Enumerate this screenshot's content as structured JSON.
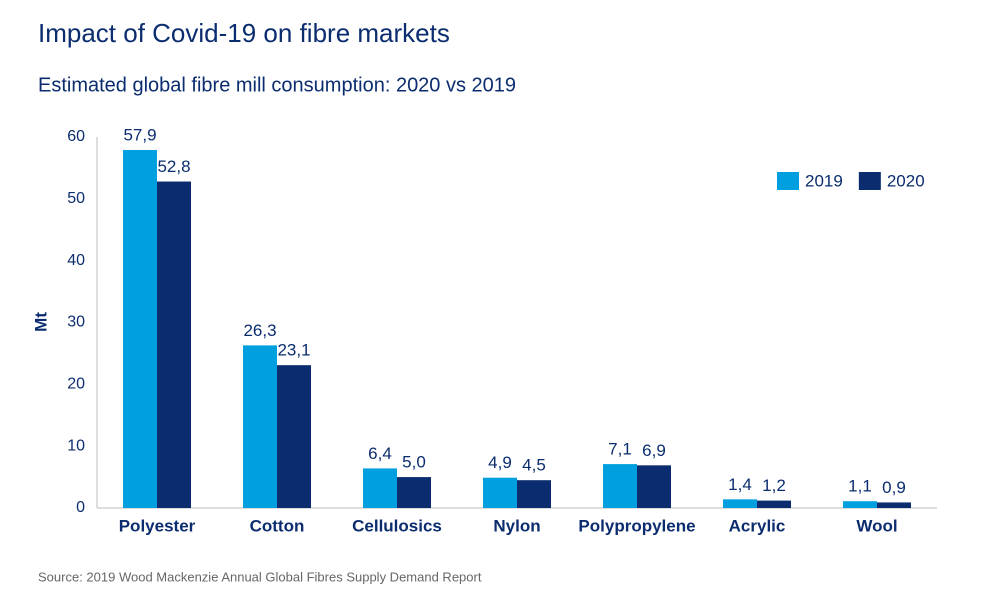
{
  "chart_data": {
    "type": "bar",
    "title": "Impact of Covid-19 on fibre markets",
    "subtitle": "Estimated global fibre mill consumption: 2020 vs 2019",
    "y_label": "Mt",
    "source": "Source: 2019 Wood Mackenzie Annual Global Fibres Supply Demand Report",
    "categories": [
      "Polyester",
      "Cotton",
      "Cellulosics",
      "Nylon",
      "Polypropylene",
      "Acrylic",
      "Wool"
    ],
    "series": [
      {
        "name": "2019",
        "color": "#009fdf",
        "values": [
          57.9,
          26.3,
          6.4,
          4.9,
          7.1,
          1.4,
          1.1
        ],
        "value_labels": [
          "57,9",
          "26,3",
          "6,4",
          "4,9",
          "7,1",
          "1,4",
          "1,1"
        ]
      },
      {
        "name": "2020",
        "color": "#0b2d6f",
        "values": [
          52.8,
          23.1,
          5.0,
          4.5,
          6.9,
          1.2,
          0.9
        ],
        "value_labels": [
          "52,8",
          "23,1",
          "5,0",
          "4,5",
          "6,9",
          "1,2",
          "0,9"
        ]
      }
    ],
    "ylim": [
      0,
      60
    ],
    "yticks": [
      0,
      10,
      20,
      30,
      40,
      50,
      60
    ],
    "grid": false,
    "legend": "top-right"
  }
}
